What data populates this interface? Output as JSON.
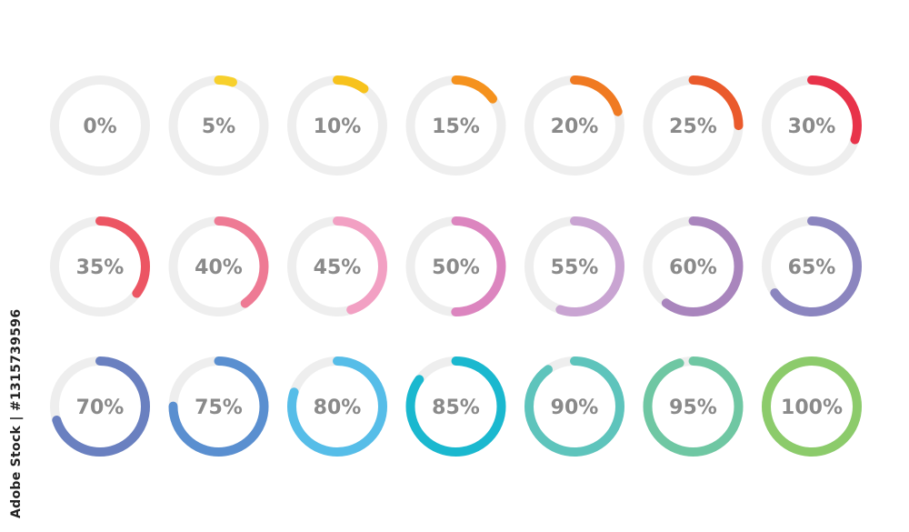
{
  "track_color": "#eeeeee",
  "label_color": "#8a8a8a",
  "watermark": "Adobe Stock | #1315739596",
  "indicators": [
    {
      "label": "0%",
      "value": 0,
      "color": "#f5c518"
    },
    {
      "label": "5%",
      "value": 5,
      "color": "#f7d02c"
    },
    {
      "label": "10%",
      "value": 10,
      "color": "#f7c21c"
    },
    {
      "label": "15%",
      "value": 15,
      "color": "#f5921e"
    },
    {
      "label": "20%",
      "value": 20,
      "color": "#f07a22"
    },
    {
      "label": "25%",
      "value": 25,
      "color": "#ea5a2c"
    },
    {
      "label": "30%",
      "value": 30,
      "color": "#e8334a"
    },
    {
      "label": "35%",
      "value": 35,
      "color": "#ec5563"
    },
    {
      "label": "40%",
      "value": 40,
      "color": "#ee7a94"
    },
    {
      "label": "45%",
      "value": 45,
      "color": "#f2a0c3"
    },
    {
      "label": "50%",
      "value": 50,
      "color": "#dc85bf"
    },
    {
      "label": "55%",
      "value": 55,
      "color": "#c9a4d2"
    },
    {
      "label": "60%",
      "value": 60,
      "color": "#a985bd"
    },
    {
      "label": "65%",
      "value": 65,
      "color": "#8b85bf"
    },
    {
      "label": "70%",
      "value": 70,
      "color": "#6a80c0"
    },
    {
      "label": "75%",
      "value": 75,
      "color": "#5a8fd0"
    },
    {
      "label": "80%",
      "value": 80,
      "color": "#56bde8"
    },
    {
      "label": "85%",
      "value": 85,
      "color": "#1ab8cf"
    },
    {
      "label": "90%",
      "value": 90,
      "color": "#5ec4bc"
    },
    {
      "label": "95%",
      "value": 95,
      "color": "#6fc7a3"
    },
    {
      "label": "100%",
      "value": 100,
      "color": "#8ccb6b"
    }
  ]
}
